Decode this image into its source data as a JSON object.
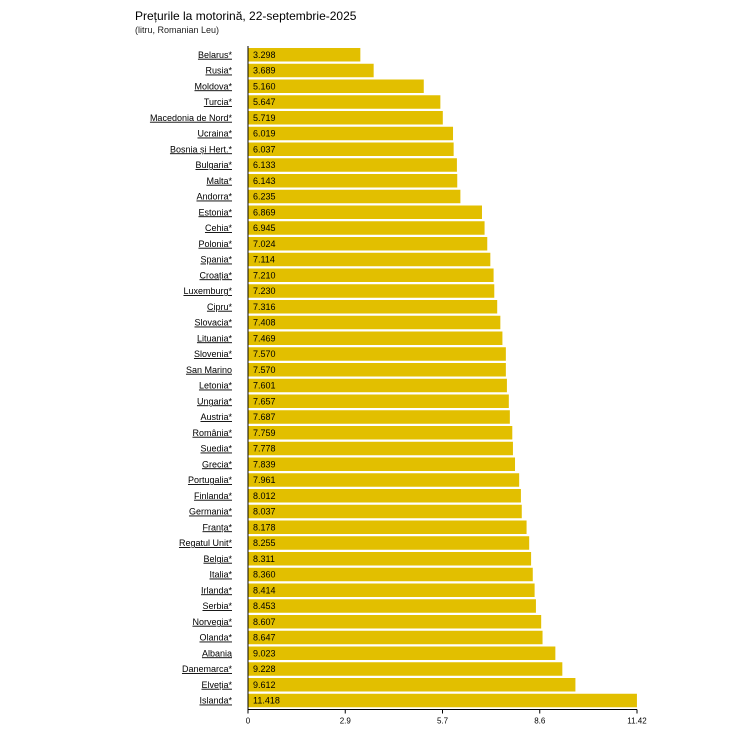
{
  "title": "Prețurile la motorină, 22-septembrie-2025",
  "subtitle": "(litru, Romanian Leu)",
  "colors": {
    "bar": "#e2bf00",
    "axis": "#000000"
  },
  "chart_data": {
    "type": "bar",
    "orientation": "horizontal",
    "title": "Prețurile la motorină, 22-septembrie-2025",
    "subtitle": "(litru, Romanian Leu)",
    "xlabel": "",
    "ylabel": "",
    "xlim": [
      0,
      11.42
    ],
    "xticks": [
      "0",
      "2.9",
      "5.7",
      "8.6",
      "11.42"
    ],
    "xtick_values": [
      0,
      2.855,
      5.71,
      8.565,
      11.42
    ],
    "grid": false,
    "legend": "none",
    "categories": [
      "Belarus*",
      "Rusia*",
      "Moldova*",
      "Turcia*",
      "Macedonia de Nord*",
      "Ucraina*",
      "Bosnia și Hert.*",
      "Bulgaria*",
      "Malta*",
      "Andorra*",
      "Estonia*",
      "Cehia*",
      "Polonia*",
      "Spania*",
      "Croația*",
      "Luxemburg*",
      "Cipru*",
      "Slovacia*",
      "Lituania*",
      "Slovenia*",
      "San Marino",
      "Letonia*",
      "Ungaria*",
      "Austria*",
      "România*",
      "Suedia*",
      "Grecia*",
      "Portugalia*",
      "Finlanda*",
      "Germania*",
      "Franța*",
      "Regatul Unit*",
      "Belgia*",
      "Italia*",
      "Irlanda*",
      "Serbia*",
      "Norvegia*",
      "Olanda*",
      "Albania",
      "Danemarca*",
      "Elveția*",
      "Islanda*"
    ],
    "values": [
      3.298,
      3.689,
      5.16,
      5.647,
      5.719,
      6.019,
      6.037,
      6.133,
      6.143,
      6.235,
      6.869,
      6.945,
      7.024,
      7.114,
      7.21,
      7.23,
      7.316,
      7.408,
      7.469,
      7.57,
      7.57,
      7.601,
      7.657,
      7.687,
      7.759,
      7.778,
      7.839,
      7.961,
      8.012,
      8.037,
      8.178,
      8.255,
      8.311,
      8.36,
      8.414,
      8.453,
      8.607,
      8.647,
      9.023,
      9.228,
      9.612,
      11.418
    ],
    "value_labels": [
      "3.298",
      "3.689",
      "5.160",
      "5.647",
      "5.719",
      "6.019",
      "6.037",
      "6.133",
      "6.143",
      "6.235",
      "6.869",
      "6.945",
      "7.024",
      "7.114",
      "7.210",
      "7.230",
      "7.316",
      "7.408",
      "7.469",
      "7.570",
      "7.570",
      "7.601",
      "7.657",
      "7.687",
      "7.759",
      "7.778",
      "7.839",
      "7.961",
      "8.012",
      "8.037",
      "8.178",
      "8.255",
      "8.311",
      "8.360",
      "8.414",
      "8.453",
      "8.607",
      "8.647",
      "9.023",
      "9.228",
      "9.612",
      "11.418"
    ]
  }
}
